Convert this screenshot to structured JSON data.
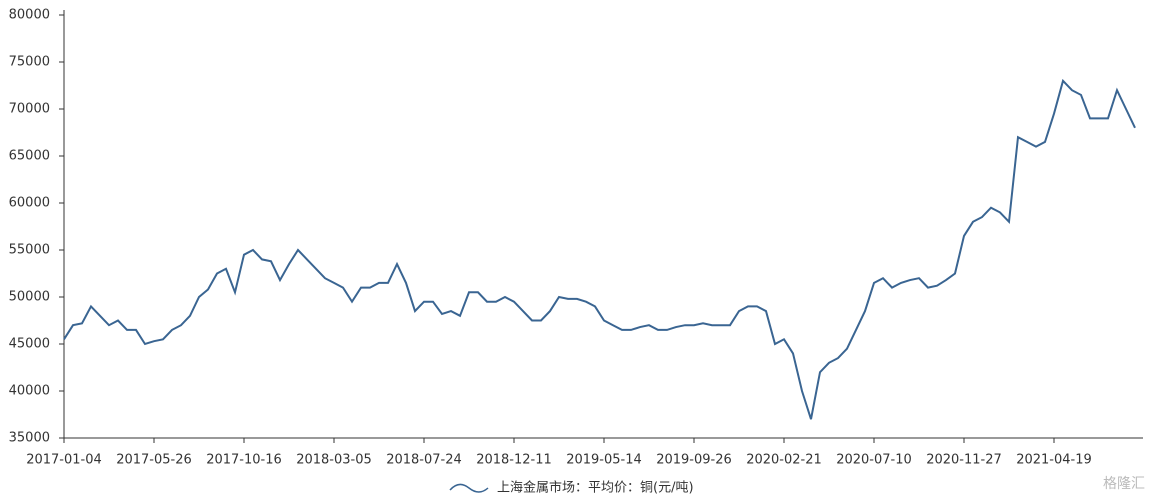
{
  "chart_data": {
    "type": "line",
    "categories": [
      "2017-01-04",
      null,
      null,
      null,
      null,
      null,
      null,
      null,
      null,
      null,
      "2017-05-26",
      null,
      null,
      null,
      null,
      null,
      null,
      null,
      null,
      null,
      "2017-10-16",
      null,
      null,
      null,
      null,
      null,
      null,
      null,
      null,
      null,
      "2018-03-05",
      null,
      null,
      null,
      null,
      null,
      null,
      null,
      null,
      null,
      "2018-07-24",
      null,
      null,
      null,
      null,
      null,
      null,
      null,
      null,
      null,
      "2018-12-11",
      null,
      null,
      null,
      null,
      null,
      null,
      null,
      null,
      null,
      "2019-05-14",
      null,
      null,
      null,
      null,
      null,
      null,
      null,
      null,
      null,
      "2019-09-26",
      null,
      null,
      null,
      null,
      null,
      null,
      null,
      null,
      null,
      "2020-02-21",
      null,
      null,
      null,
      null,
      null,
      null,
      null,
      null,
      null,
      "2020-07-10",
      null,
      null,
      null,
      null,
      null,
      null,
      null,
      null,
      null,
      "2020-11-27",
      null,
      null,
      null,
      null,
      null,
      null,
      null,
      null,
      null,
      "2021-04-19",
      null,
      null,
      null,
      null,
      null,
      null,
      null,
      null,
      null
    ],
    "series": [
      {
        "name": "上海金属市场：平均价：铜(元/吨)",
        "color": "#3a6592",
        "values": [
          45500,
          47000,
          47200,
          49000,
          48000,
          47000,
          47500,
          46500,
          46500,
          45000,
          45300,
          45500,
          46500,
          47000,
          48000,
          50000,
          50800,
          52500,
          53000,
          50500,
          54500,
          55000,
          54000,
          53800,
          51800,
          53500,
          55000,
          54000,
          53000,
          52000,
          51500,
          51000,
          49500,
          51000,
          51000,
          51500,
          51500,
          53500,
          51500,
          48500,
          49500,
          49500,
          48200,
          48500,
          48000,
          50500,
          50500,
          49500,
          49500,
          50000,
          49500,
          48500,
          47500,
          47500,
          48500,
          50000,
          49800,
          49800,
          49500,
          49000,
          47500,
          47000,
          46500,
          46500,
          46800,
          47000,
          46500,
          46500,
          46800,
          47000,
          47000,
          47200,
          47000,
          47000,
          47000,
          48500,
          49000,
          49000,
          48500,
          45000,
          45500,
          44000,
          40000,
          37000,
          42000,
          43000,
          43500,
          44500,
          46500,
          48500,
          51500,
          52000,
          51000,
          51500,
          51800,
          52000,
          51000,
          51200,
          51800,
          52500,
          56500,
          58000,
          58500,
          59500,
          59000,
          58000,
          67000,
          66500,
          66000,
          66500,
          69500,
          73000,
          72000,
          71500,
          69000,
          69000,
          69000,
          72000,
          70000,
          68000
        ]
      }
    ],
    "ylim": [
      35000,
      80000
    ],
    "yticks": [
      35000,
      40000,
      45000,
      50000,
      55000,
      60000,
      65000,
      70000,
      75000,
      80000
    ],
    "legend": "bottom",
    "watermark": "格隆汇"
  }
}
